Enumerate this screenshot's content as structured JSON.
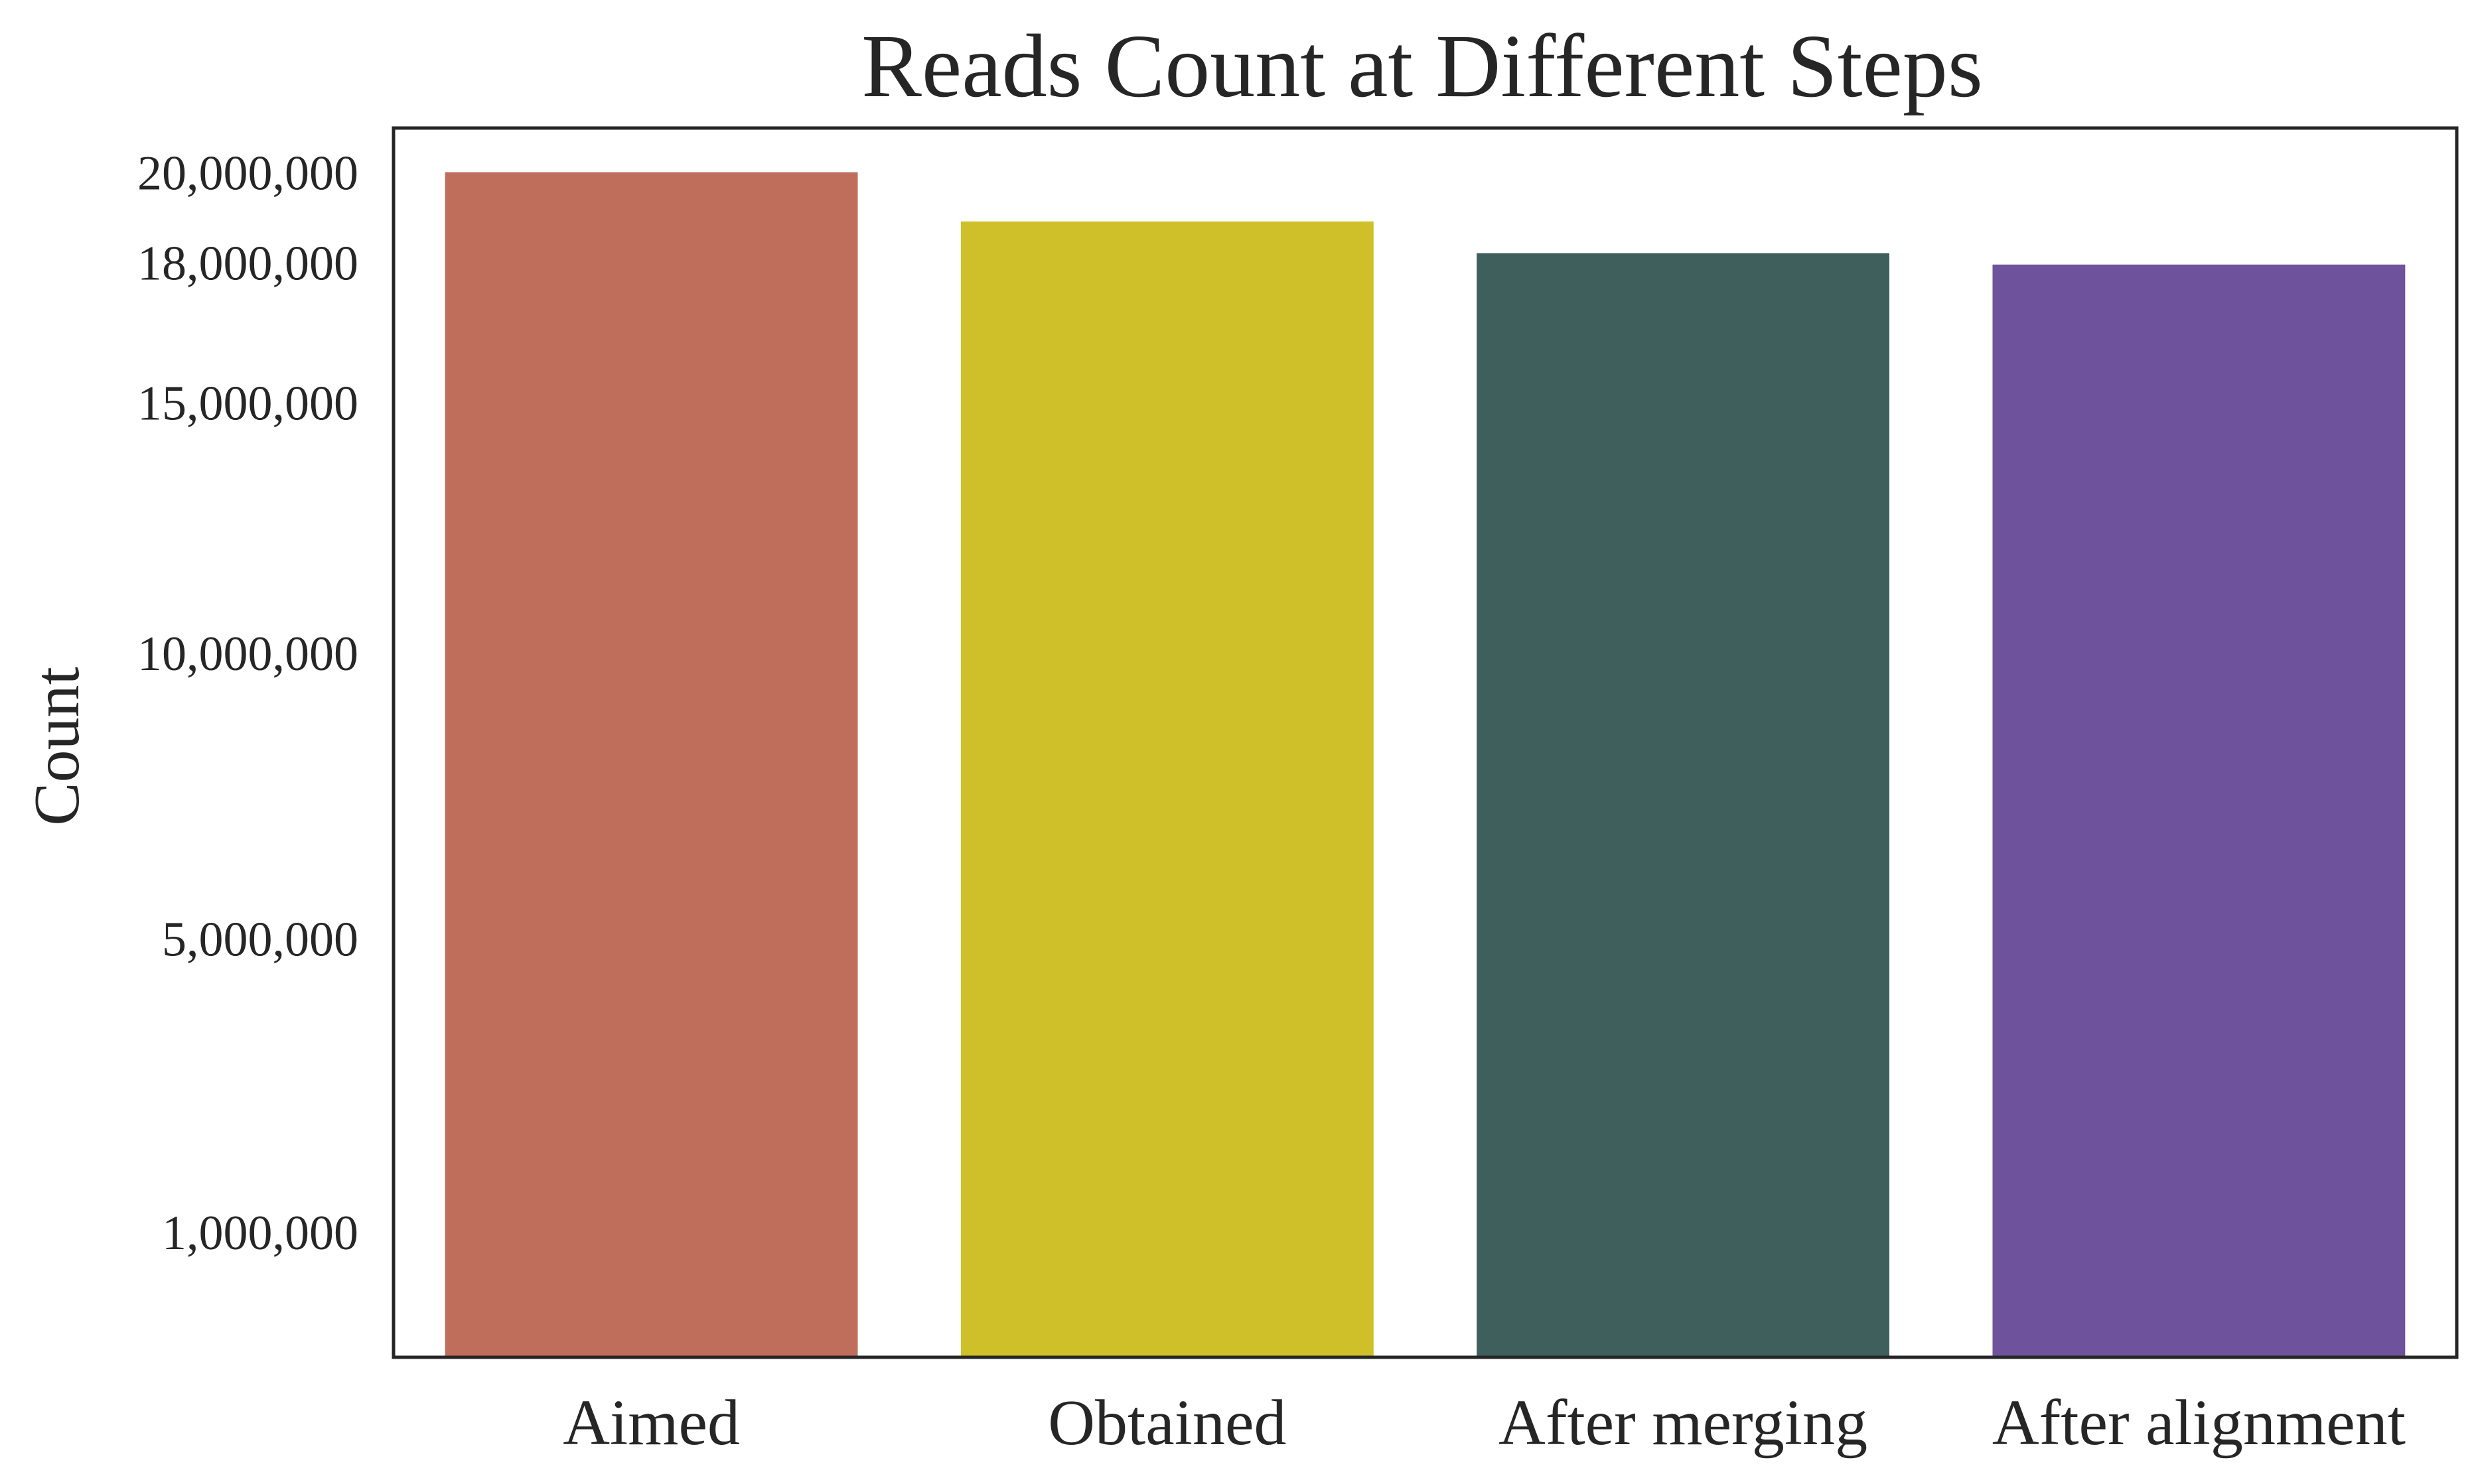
{
  "chart_data": {
    "type": "bar",
    "title": "Reads Count at Different Steps",
    "xlabel": "",
    "ylabel": "Count",
    "y_scale": "power-0.75",
    "ylim": [
      0,
      21000000
    ],
    "yticks": [
      1000000,
      5000000,
      10000000,
      15000000,
      18000000,
      20000000
    ],
    "ytick_labels": [
      "1,000,000",
      "5,000,000",
      "10,000,000",
      "15,000,000",
      "18,000,000",
      "20,000,000"
    ],
    "categories": [
      "Aimed",
      "Obtained",
      "After merging",
      "After alignment"
    ],
    "values": [
      20000000,
      18900000,
      18200000,
      17950000
    ],
    "colors": [
      "#BE6E5A",
      "#CFC02A",
      "#3F5F5D",
      "#6E529B"
    ],
    "grid": false,
    "legend": "none"
  }
}
